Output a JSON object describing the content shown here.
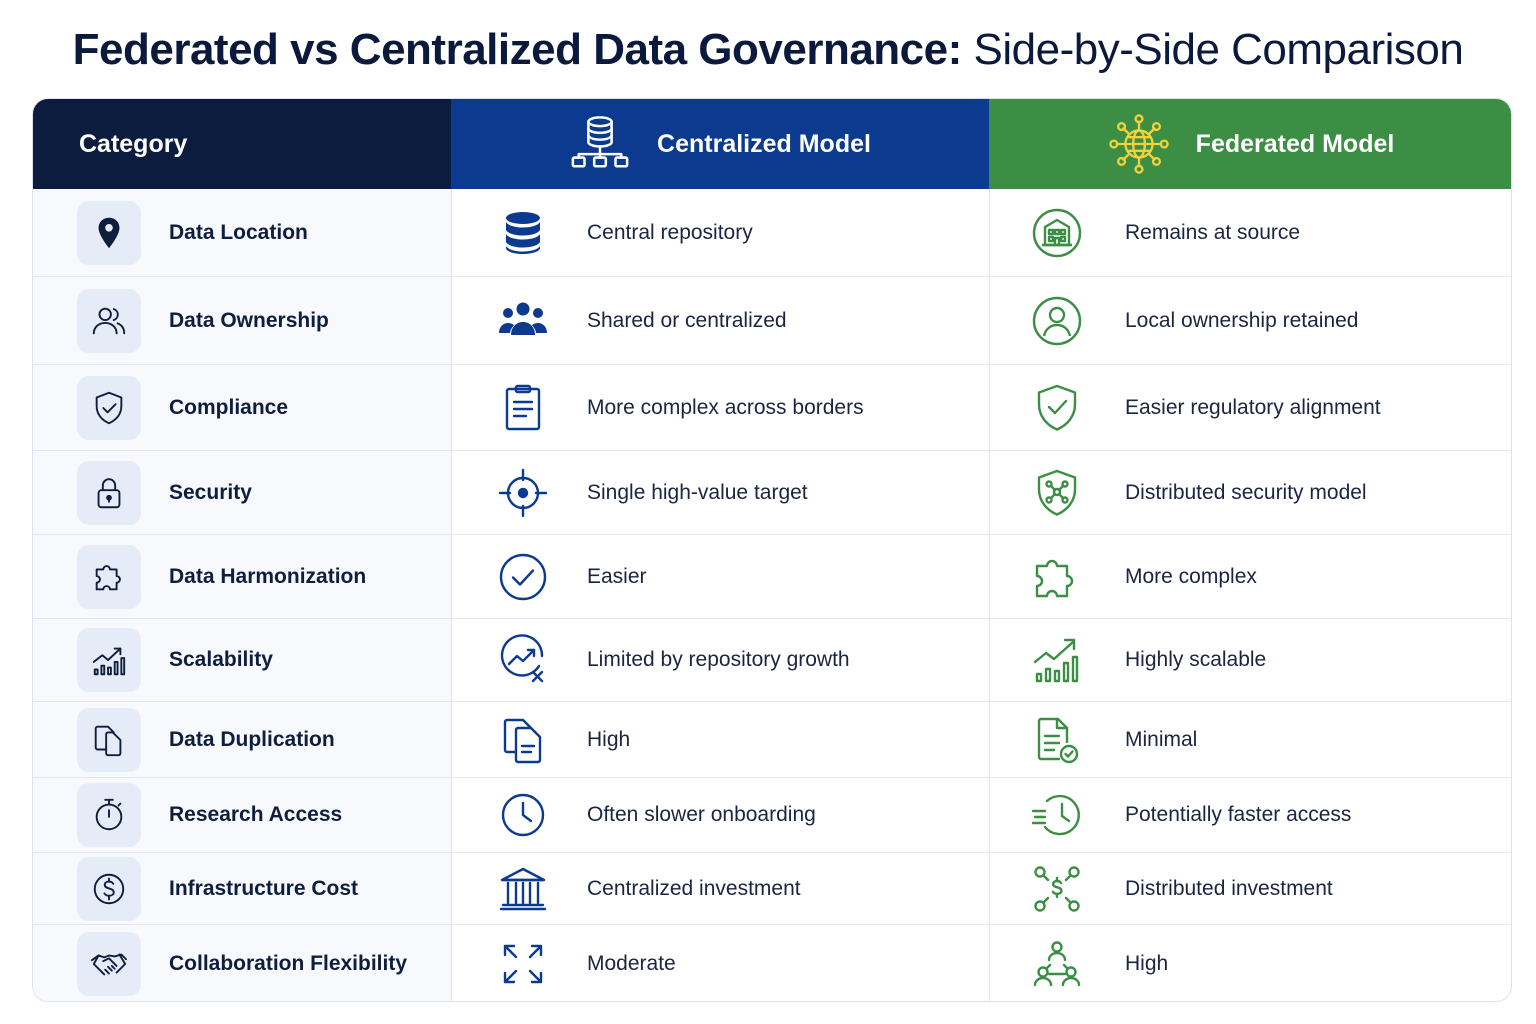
{
  "title": {
    "bold": "Federated vs Centralized Data Governance:",
    "light": "Side-by-Side Comparison"
  },
  "header": {
    "category": "Category",
    "centralized": "Centralized Model",
    "federated": "Federated Model"
  },
  "colors": {
    "navy": "#0b1c3e",
    "blue": "#0b3a8f",
    "green": "#3d8e45"
  },
  "rows": [
    {
      "category": "Data Location",
      "centralized": "Central repository",
      "federated": "Remains at source",
      "cat_icon": "map-pin-icon",
      "cen_icon": "database-icon",
      "fed_icon": "building-icon"
    },
    {
      "category": "Data Ownership",
      "centralized": "Shared or centralized",
      "federated": "Local ownership retained",
      "cat_icon": "users-icon",
      "cen_icon": "group-icon",
      "fed_icon": "user-circle-icon"
    },
    {
      "category": "Compliance",
      "centralized": "More complex across borders",
      "federated": "Easier regulatory alignment",
      "cat_icon": "shield-check-icon",
      "cen_icon": "clipboard-icon",
      "fed_icon": "shield-check-icon"
    },
    {
      "category": "Security",
      "centralized": "Single high-value target",
      "federated": "Distributed security model",
      "cat_icon": "lock-icon",
      "cen_icon": "target-icon",
      "fed_icon": "shield-network-icon"
    },
    {
      "category": "Data Harmonization",
      "centralized": "Easier",
      "federated": "More complex",
      "cat_icon": "puzzle-icon",
      "cen_icon": "check-circle-icon",
      "fed_icon": "puzzle-icon"
    },
    {
      "category": "Scalability",
      "centralized": "Limited by repository growth",
      "federated": "Highly scalable",
      "cat_icon": "growth-chart-icon",
      "cen_icon": "limited-growth-icon",
      "fed_icon": "growth-chart-icon"
    },
    {
      "category": "Data Duplication",
      "centralized": "High",
      "federated": "Minimal",
      "cat_icon": "copy-icon",
      "cen_icon": "copy-document-icon",
      "fed_icon": "document-check-icon"
    },
    {
      "category": "Research Access",
      "centralized": "Often slower onboarding",
      "federated": "Potentially faster access",
      "cat_icon": "stopwatch-icon",
      "cen_icon": "clock-icon",
      "fed_icon": "fast-clock-icon"
    },
    {
      "category": "Infrastructure Cost",
      "centralized": "Centralized investment",
      "federated": "Distributed investment",
      "cat_icon": "dollar-circle-icon",
      "cen_icon": "bank-icon",
      "fed_icon": "distributed-dollar-icon"
    },
    {
      "category": "Collaboration Flexibility",
      "centralized": "Moderate",
      "federated": "High",
      "cat_icon": "handshake-icon",
      "cen_icon": "expand-arrows-icon",
      "fed_icon": "people-network-icon"
    }
  ]
}
